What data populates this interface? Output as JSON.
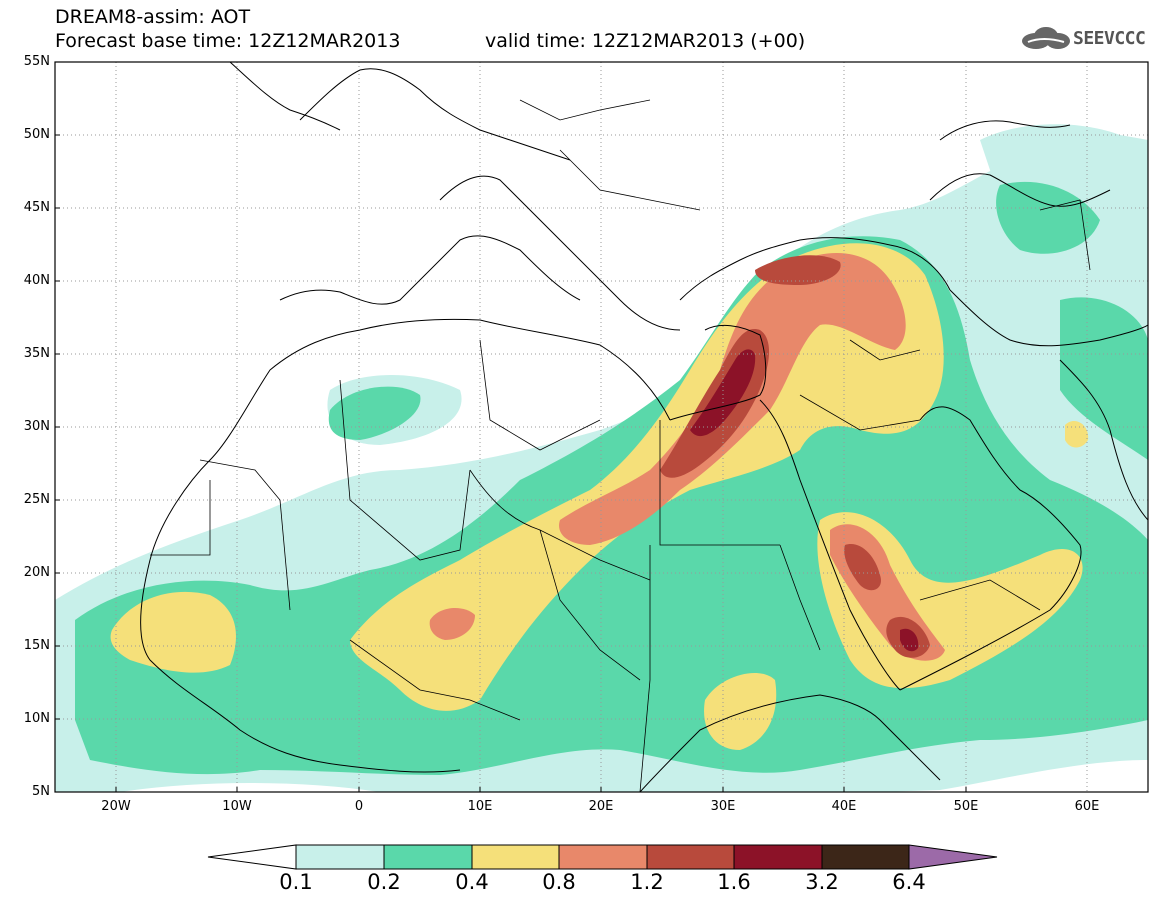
{
  "header": {
    "line1": "DREAM8-assim: AOT",
    "line2": "Forecast base time: 12Z12MAR2013",
    "valid": "valid time: 12Z12MAR2013 (+00)",
    "logo_text": "SEEVCCC"
  },
  "map": {
    "projection": "latlon",
    "lon_range": [
      -25,
      65
    ],
    "lat_range": [
      5,
      55
    ],
    "lat_labels": [
      "55N",
      "50N",
      "45N",
      "40N",
      "35N",
      "30N",
      "25N",
      "20N",
      "15N",
      "10N",
      "5N"
    ],
    "lat_values": [
      55,
      50,
      45,
      40,
      35,
      30,
      25,
      20,
      15,
      10,
      5
    ],
    "lon_labels": [
      "20W",
      "10W",
      "0",
      "10E",
      "20E",
      "30E",
      "40E",
      "50E",
      "60E"
    ],
    "lon_values": [
      -20,
      -10,
      0,
      10,
      20,
      30,
      40,
      50,
      60
    ],
    "grid": "dotted"
  },
  "colorbar": {
    "labels": [
      "0.1",
      "0.2",
      "0.4",
      "0.8",
      "1.2",
      "1.6",
      "3.2",
      "6.4"
    ],
    "colors": [
      "#c8f0ea",
      "#5ad8aa",
      "#f5e07a",
      "#e8886a",
      "#b84a3c",
      "#8c1228",
      "#3c2618",
      "#9c6aa8"
    ]
  },
  "field": {
    "variable": "AOT",
    "levels": [
      0.1,
      0.2,
      0.4,
      0.8,
      1.2,
      1.6,
      3.2,
      6.4
    ],
    "colors": {
      "0.1": "#c8f0ea",
      "0.2": "#5ad8aa",
      "0.4": "#f5e07a",
      "0.8": "#e8886a",
      "1.2": "#b84a3c",
      "1.6": "#8c1228"
    }
  }
}
